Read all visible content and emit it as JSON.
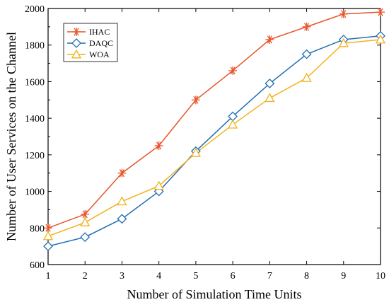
{
  "chart_data": {
    "type": "line",
    "xlabel": "Number of Simulation Time Units",
    "ylabel": "Number of User Services on the Channel",
    "x": [
      1,
      2,
      3,
      4,
      5,
      6,
      7,
      8,
      9,
      10
    ],
    "xlim": [
      1,
      10
    ],
    "ylim": [
      600,
      2000
    ],
    "xticks": [
      "1",
      "2",
      "3",
      "4",
      "5",
      "6",
      "7",
      "8",
      "9",
      "10"
    ],
    "yticks": [
      "600",
      "800",
      "1000",
      "1200",
      "1400",
      "1600",
      "1800",
      "2000"
    ],
    "grid": false,
    "legend_position": "top-left",
    "series": [
      {
        "name": "IHAC",
        "color": "#e8542a",
        "marker": "asterisk",
        "values": [
          800,
          875,
          1100,
          1250,
          1500,
          1660,
          1830,
          1900,
          1970,
          1980
        ]
      },
      {
        "name": "DAQC",
        "color": "#1f6fb2",
        "marker": "diamond",
        "values": [
          700,
          750,
          850,
          1000,
          1220,
          1410,
          1590,
          1750,
          1830,
          1850
        ]
      },
      {
        "name": "WOA",
        "color": "#f2b21b",
        "marker": "triangle",
        "values": [
          755,
          830,
          945,
          1030,
          1210,
          1365,
          1510,
          1620,
          1810,
          1830
        ]
      }
    ]
  }
}
